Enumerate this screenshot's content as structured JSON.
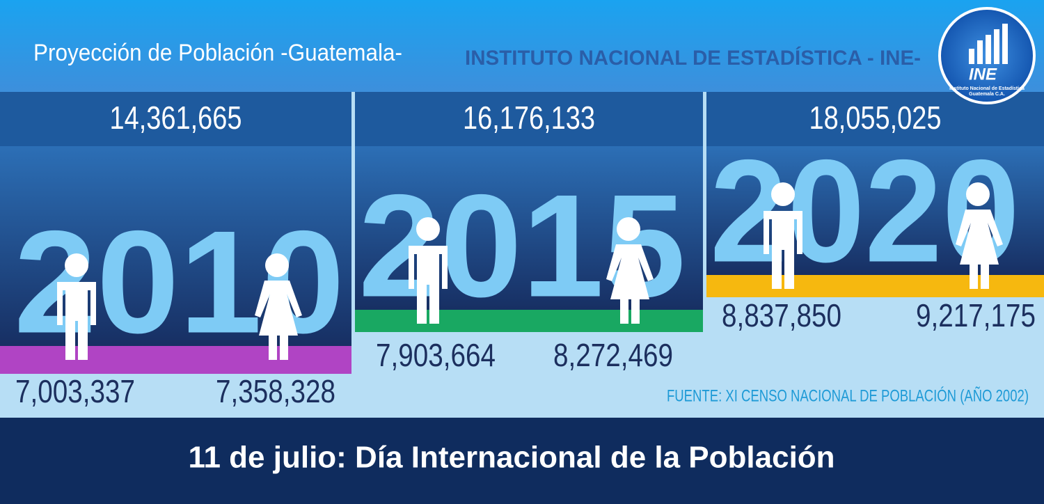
{
  "header": {
    "title": "Proyección de Población -Guatemala-",
    "organization": "INSTITUTO NACIONAL DE ESTADÍSTICA - INE-"
  },
  "logo": {
    "acronym": "INE",
    "name": "Instituto Nacional de Estadística",
    "country": "Guatemala C.A."
  },
  "panels": [
    {
      "total": "14,361,665",
      "year": "2010",
      "male": "7,003,337",
      "female": "7,358,328"
    },
    {
      "total": "16,176,133",
      "year": "2015",
      "male": "7,903,664",
      "female": "8,272,469"
    },
    {
      "total": "18,055,025",
      "year": "2020",
      "male": "8,837,850",
      "female": "9,217,175"
    }
  ],
  "source": "FUENTE: XI CENSO NACIONAL DE POBLACIÓN (AÑO 2002)",
  "footer": "11 de julio: Día Internacional de la Población"
}
